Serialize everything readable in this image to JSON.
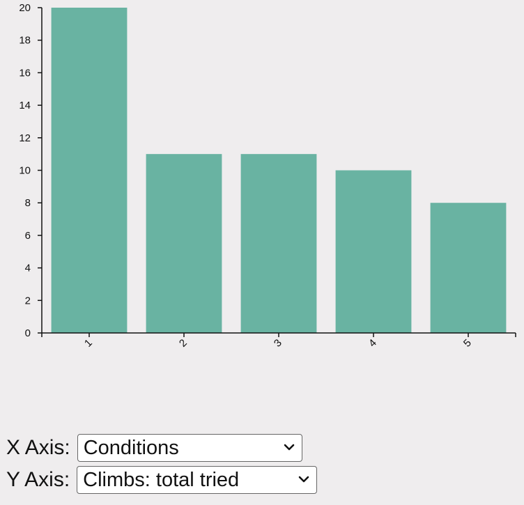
{
  "chart_data": {
    "type": "bar",
    "categories": [
      "1",
      "2",
      "3",
      "4",
      "5"
    ],
    "values": [
      20,
      11,
      11,
      10,
      8
    ],
    "ylim": [
      0,
      20
    ],
    "yticks": [
      0,
      2,
      4,
      6,
      8,
      10,
      12,
      14,
      16,
      18,
      20
    ],
    "title": "",
    "xlabel": "",
    "ylabel": "",
    "bar_color": "#69b3a2",
    "grid": false
  },
  "controls": {
    "x_axis": {
      "label": "X Axis:",
      "selected": "Conditions",
      "icon": "chevron-down-icon"
    },
    "y_axis": {
      "label": "Y Axis:",
      "selected": "Climbs: total tried",
      "icon": "chevron-down-icon"
    }
  }
}
